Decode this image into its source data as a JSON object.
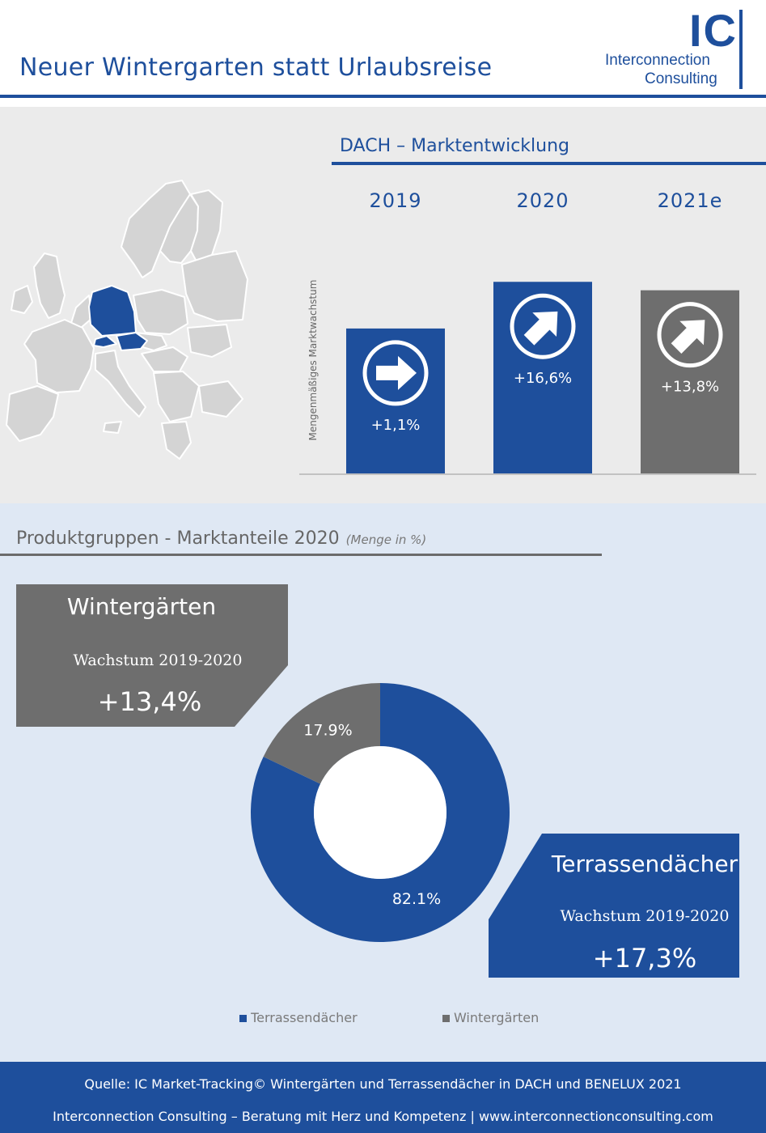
{
  "header": {
    "title": "Neuer Wintergarten statt Urlaubsreise",
    "logo": {
      "mark": "IC",
      "line1": "Interconnection",
      "line2": "Consulting"
    }
  },
  "colors": {
    "blue": "#1e4f9c",
    "gray": "#6e6e6e",
    "map_gray": "#d6d6d6"
  },
  "map": {
    "icon": "europe-map",
    "highlight": "DACH"
  },
  "chart_data": [
    {
      "type": "bar",
      "title": "DACH – Marktentwicklung",
      "ylabel": "Mengenmäßiges Marktwachstum",
      "categories": [
        "2019",
        "2020",
        "2021e"
      ],
      "values": [
        1.1,
        16.6,
        13.8
      ],
      "labels": [
        "+1,1%",
        "+16,6%",
        "+13,8%"
      ],
      "colors": [
        "#1e4f9c",
        "#1e4f9c",
        "#6e6e6e"
      ],
      "icons": [
        "arrow-right-icon",
        "arrow-up-right-icon",
        "arrow-up-right-icon"
      ]
    },
    {
      "type": "pie",
      "variant": "donut",
      "title": "Produktgruppen - Marktanteile 2020",
      "subtitle": "(Menge in %)",
      "categories": [
        "Terrassendächer",
        "Wintergärten"
      ],
      "values": [
        82.1,
        17.9
      ],
      "labels": [
        "82.1%",
        "17.9%"
      ],
      "colors": [
        "#1e4f9c",
        "#6e6e6e"
      ],
      "legend": "bottom"
    }
  ],
  "callouts": {
    "winter": {
      "title": "Wintergärten",
      "sub": "Wachstum 2019-2020",
      "value": "+13,4%"
    },
    "terrace": {
      "title": "Terrassendächer",
      "sub": "Wachstum 2019-2020",
      "value": "+17,3%"
    }
  },
  "footer": {
    "line1": "Quelle: IC Market-Tracking© Wintergärten und Terrassendächer in DACH und BENELUX 2021",
    "line2": "Interconnection Consulting – Beratung mit Herz und Kompetenz  |  www.interconnectionconsulting.com"
  }
}
